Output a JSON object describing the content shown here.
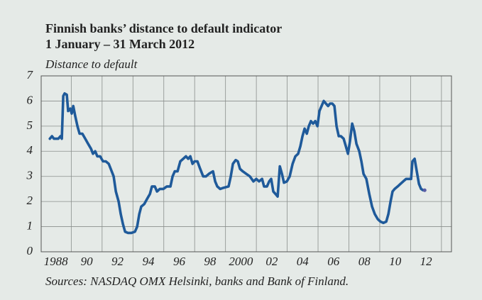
{
  "chart_data": {
    "type": "line",
    "title": [
      "Finnish banks’ distance to default indicator",
      "1 January – 31 March 2012"
    ],
    "y_label": "Distance to default",
    "source": "Sources: NASDAQ OMX Helsinki, banks and Bank of Finland.",
    "xlim": [
      1987.05,
      2013.65
    ],
    "xticks": [
      {
        "value": 1988,
        "label": "1988"
      },
      {
        "value": 1990,
        "label": "90"
      },
      {
        "value": 1992,
        "label": "92"
      },
      {
        "value": 1994,
        "label": "94"
      },
      {
        "value": 1996,
        "label": "96"
      },
      {
        "value": 1998,
        "label": "98"
      },
      2000,
      {
        "value": 2002,
        "label": "02"
      },
      {
        "value": 2004,
        "label": "04"
      },
      {
        "value": 2006,
        "label": "06"
      },
      {
        "value": 2008,
        "label": "08"
      },
      {
        "value": 2010,
        "label": "10"
      },
      {
        "value": 2012,
        "label": "12"
      }
    ],
    "xgrid": [
      1989,
      1991,
      1993,
      1995,
      1997,
      1999,
      2001,
      2003,
      2005,
      2007,
      2009,
      2011,
      2013
    ],
    "ylim": [
      0,
      7
    ],
    "yticks": [
      0,
      1,
      2,
      3,
      4,
      5,
      6,
      7
    ],
    "grid": true,
    "series": [
      {
        "color": "#1f5a9a",
        "x": [
          1987.61,
          1987.75,
          1987.88,
          1988.16,
          1988.3,
          1988.39,
          1988.48,
          1988.57,
          1988.71,
          1988.8,
          1988.94,
          1989.03,
          1989.13,
          1989.26,
          1989.4,
          1989.54,
          1989.72,
          1989.91,
          1990.09,
          1990.28,
          1990.41,
          1990.55,
          1990.69,
          1990.87,
          1991.06,
          1991.24,
          1991.43,
          1991.56,
          1991.75,
          1991.89,
          1992.07,
          1992.21,
          1992.35,
          1992.49,
          1992.67,
          1992.9,
          1993.13,
          1993.27,
          1993.41,
          1993.54,
          1993.73,
          1993.91,
          1994.1,
          1994.23,
          1994.42,
          1994.56,
          1994.74,
          1994.97,
          1995.2,
          1995.43,
          1995.57,
          1995.71,
          1995.89,
          1996.07,
          1996.26,
          1996.44,
          1996.58,
          1996.72,
          1996.86,
          1997.0,
          1997.18,
          1997.36,
          1997.55,
          1997.73,
          1997.92,
          1998.05,
          1998.19,
          1998.33,
          1998.47,
          1998.65,
          1998.88,
          1999.2,
          1999.34,
          1999.48,
          1999.66,
          1999.8,
          1999.94,
          2000.12,
          2000.35,
          2000.58,
          2000.81,
          2001.0,
          2001.18,
          2001.37,
          2001.5,
          2001.69,
          2001.83,
          2001.96,
          2002.1,
          2002.24,
          2002.38,
          2002.52,
          2002.66,
          2002.79,
          2002.98,
          2003.16,
          2003.35,
          2003.53,
          2003.71,
          2003.85,
          2003.99,
          2004.13,
          2004.27,
          2004.4,
          2004.54,
          2004.68,
          2004.82,
          2004.96,
          2005.09,
          2005.23,
          2005.37,
          2005.51,
          2005.65,
          2005.78,
          2005.92,
          2006.06,
          2006.2,
          2006.34,
          2006.48,
          2006.66,
          2006.8,
          2006.94,
          2007.07,
          2007.21,
          2007.35,
          2007.49,
          2007.67,
          2007.81,
          2007.95,
          2008.13,
          2008.32,
          2008.5,
          2008.68,
          2008.87,
          2009.05,
          2009.24,
          2009.42,
          2009.56,
          2009.7,
          2009.83,
          2009.97,
          2010.16,
          2010.34,
          2010.52,
          2010.71,
          2010.89,
          2011.03,
          2011.12,
          2011.26,
          2011.4,
          2011.54,
          2011.68,
          2011.81,
          2011.91
        ],
        "values": [
          4.5,
          4.6,
          4.5,
          4.5,
          4.6,
          4.5,
          6.2,
          6.3,
          6.25,
          5.6,
          5.7,
          5.5,
          5.8,
          5.4,
          5.0,
          4.7,
          4.7,
          4.5,
          4.3,
          4.1,
          3.9,
          4.0,
          3.8,
          3.8,
          3.6,
          3.6,
          3.5,
          3.3,
          3.0,
          2.4,
          2.0,
          1.5,
          1.1,
          0.8,
          0.75,
          0.75,
          0.8,
          1.0,
          1.5,
          1.8,
          1.9,
          2.1,
          2.3,
          2.6,
          2.6,
          2.4,
          2.5,
          2.5,
          2.6,
          2.6,
          3.0,
          3.2,
          3.2,
          3.6,
          3.7,
          3.8,
          3.7,
          3.8,
          3.5,
          3.6,
          3.6,
          3.3,
          3.0,
          3.0,
          3.1,
          3.15,
          3.2,
          2.8,
          2.6,
          2.5,
          2.55,
          2.6,
          3.0,
          3.5,
          3.65,
          3.6,
          3.3,
          3.2,
          3.1,
          3.0,
          2.8,
          2.9,
          2.8,
          2.9,
          2.6,
          2.6,
          2.8,
          2.9,
          2.4,
          2.3,
          2.2,
          3.4,
          3.1,
          2.75,
          2.8,
          3.0,
          3.5,
          3.8,
          3.9,
          4.2,
          4.6,
          4.9,
          4.7,
          5.0,
          5.2,
          5.1,
          5.2,
          5.0,
          5.6,
          5.8,
          6.0,
          5.9,
          5.8,
          5.9,
          5.9,
          5.8,
          5.0,
          4.6,
          4.6,
          4.5,
          4.2,
          3.9,
          4.4,
          5.1,
          4.8,
          4.3,
          4.0,
          3.6,
          3.1,
          2.9,
          2.3,
          1.8,
          1.5,
          1.3,
          1.2,
          1.15,
          1.2,
          1.5,
          2.0,
          2.4,
          2.5,
          2.6,
          2.7,
          2.8,
          2.9,
          2.9,
          2.9,
          3.6,
          3.7,
          3.2,
          2.7,
          2.5,
          2.45,
          2.45
        ]
      }
    ],
    "end_marker_color": "#5b5ea6"
  }
}
